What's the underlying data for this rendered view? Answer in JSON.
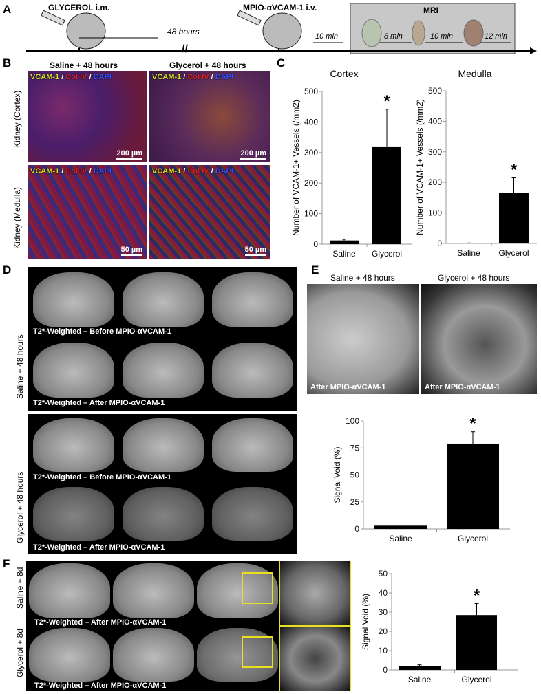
{
  "panels": {
    "a": "A",
    "b": "B",
    "c": "C",
    "d": "D",
    "e": "E",
    "f": "F"
  },
  "timeline": {
    "step1": "GLYCEROL i.m.",
    "gap": "48 hours",
    "step2": "MPIO-αVCAM-1 i.v.",
    "wait": "10 min",
    "mri": "MRI",
    "t1": "8 min",
    "t2": "10 min",
    "t3": "12 min"
  },
  "b": {
    "col1": "Saline + 48 hours",
    "col2": "Glycerol + 48 hours",
    "row1": "Kidney (Cortex)",
    "row2": "Kidney (Medulla)",
    "stain": {
      "vcam": "VCAM-1",
      "sep": " / ",
      "col": "Col IV",
      "dapi": "DAPI"
    },
    "scale1": "200 µm",
    "scale2": "50 µm",
    "colors": {
      "vcam": "#d4e020",
      "col": "#e02020",
      "dapi": "#3050ff"
    }
  },
  "d": {
    "row1": "Saline + 48 hours",
    "row2": "Glycerol + 48 hours",
    "before": "T2*-Weighted – Before MPIO-αVCAM-1",
    "after": "T2*-Weighted – After MPIO-αVCAM-1"
  },
  "e": {
    "col1": "Saline + 48 hours",
    "col2": "Glycerol + 48 hours",
    "cap": "After MPIO-αVCAM-1"
  },
  "f": {
    "row1": "Saline + 8d",
    "row2": "Glycerol + 8d",
    "cap": "T2*-Weighted – After MPIO-αVCAM-1",
    "box_color": "#e8e020"
  },
  "chart_data": [
    {
      "type": "bar",
      "title": "Cortex",
      "ylabel": "Number of VCAM-1+ Vessels (/mm2)",
      "categories": [
        "Saline",
        "Glycerol"
      ],
      "values": [
        12,
        320
      ],
      "error": [
        4,
        122
      ],
      "significance": [
        "",
        "*"
      ],
      "ylim": [
        0,
        500
      ],
      "ticks": [
        0,
        100,
        200,
        300,
        400,
        500
      ]
    },
    {
      "type": "bar",
      "title": "Medulla",
      "ylabel": "Number of VCAM-1+ Vessels (/mm2)",
      "categories": [
        "Saline",
        "Glycerol"
      ],
      "values": [
        1,
        165
      ],
      "error": [
        0.5,
        50
      ],
      "significance": [
        "",
        "*"
      ],
      "ylim": [
        0,
        500
      ],
      "ticks": [
        0,
        100,
        200,
        300,
        400,
        500
      ]
    },
    {
      "type": "bar",
      "title": "",
      "ylabel": "Signal Void (%)",
      "categories": [
        "Saline",
        "Glycerol"
      ],
      "values": [
        3,
        79
      ],
      "error": [
        0.5,
        11
      ],
      "significance": [
        "",
        "*"
      ],
      "ylim": [
        0,
        100
      ],
      "ticks": [
        0,
        25,
        50,
        75,
        100
      ]
    },
    {
      "type": "bar",
      "title": "",
      "ylabel": "Signal Void (%)",
      "categories": [
        "Saline",
        "Glycerol"
      ],
      "values": [
        2,
        28.5
      ],
      "error": [
        0.6,
        6
      ],
      "significance": [
        "",
        "*"
      ],
      "ylim": [
        0,
        50
      ],
      "ticks": [
        0,
        10,
        20,
        30,
        40,
        50
      ]
    }
  ]
}
